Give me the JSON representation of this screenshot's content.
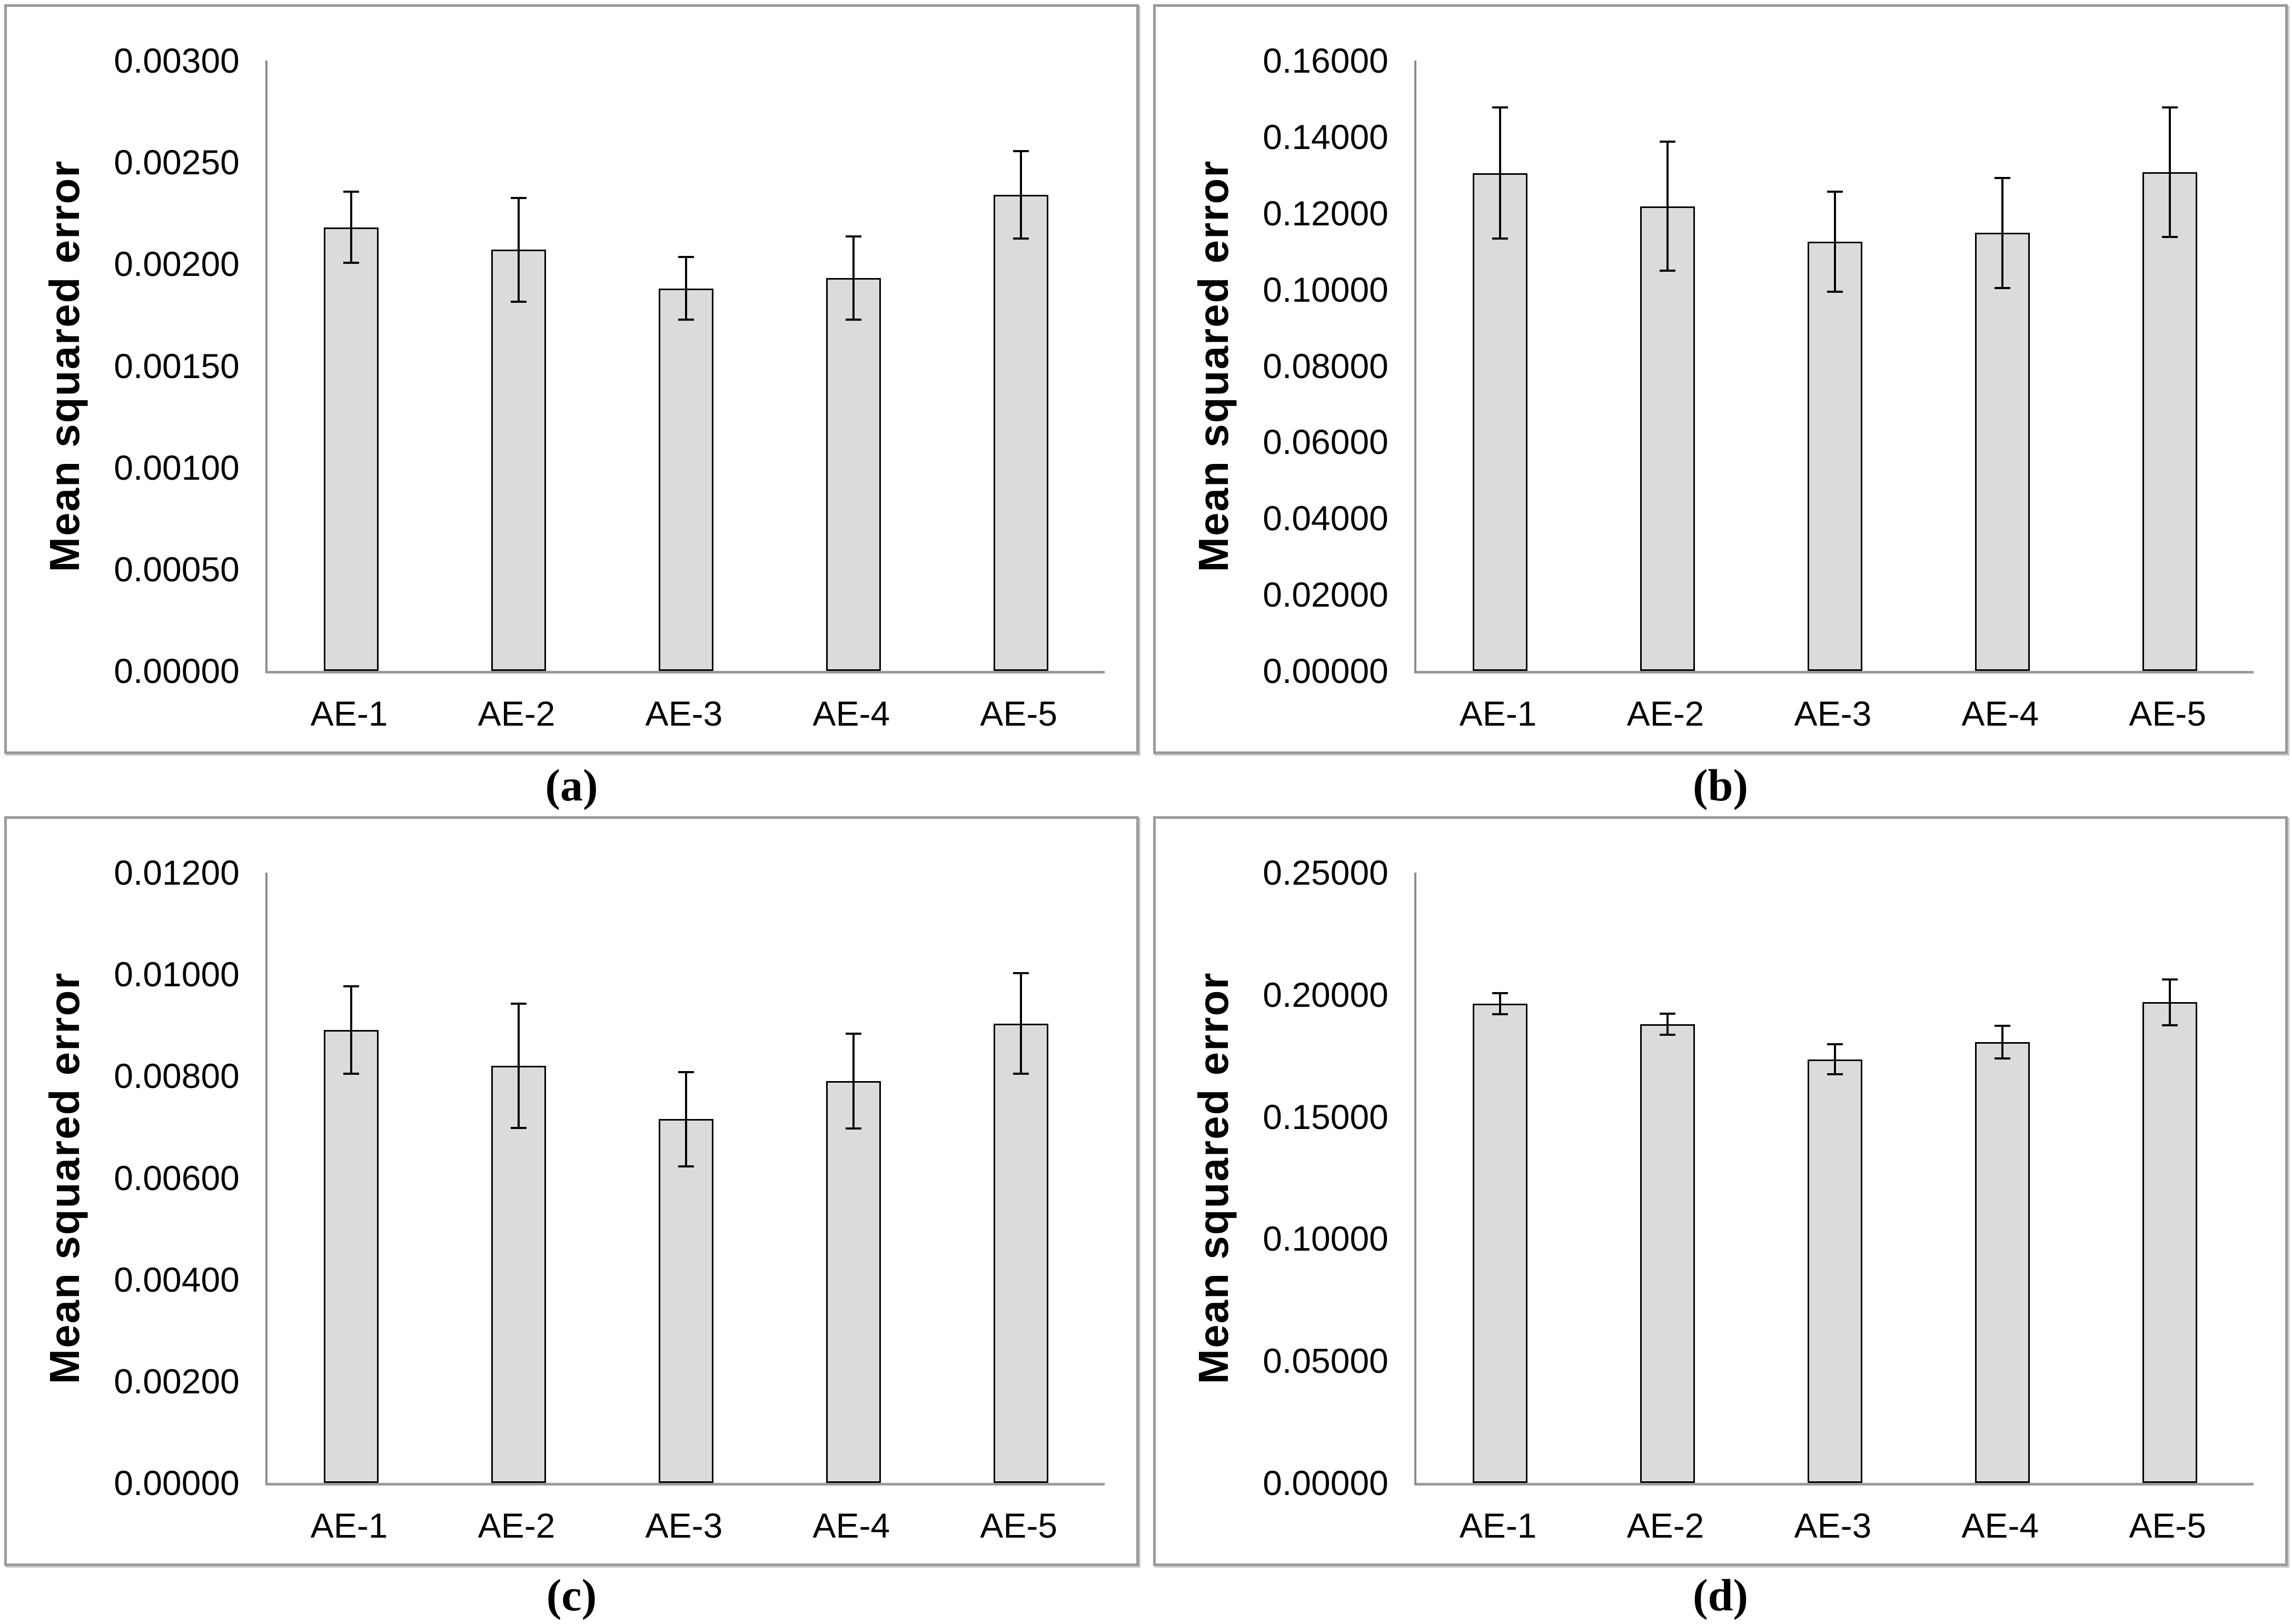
{
  "figure": {
    "background": "#ffffff",
    "panel_border_color": "#9a9a9a",
    "axis_color": "#8c8c8c",
    "bar_fill": "#dbdbdb",
    "bar_border": "#000000",
    "error_color": "#000000",
    "text_color": "#000000"
  },
  "chart_data": [
    {
      "type": "bar",
      "caption": "(a)",
      "ylabel": "Mean squared error",
      "xlabel": "",
      "categories": [
        "AE-1",
        "AE-2",
        "AE-3",
        "AE-4",
        "AE-5"
      ],
      "values": [
        0.00218,
        0.00207,
        0.00188,
        0.00193,
        0.00234
      ],
      "errors": [
        0.00018,
        0.00026,
        0.00016,
        0.00021,
        0.00022
      ],
      "ylim": [
        0,
        0.003
      ],
      "yticks": [
        "0.00300",
        "0.00250",
        "0.00200",
        "0.00150",
        "0.00100",
        "0.00050",
        "0.00000"
      ],
      "grid": false,
      "legend": null
    },
    {
      "type": "bar",
      "caption": "(b)",
      "ylabel": "Mean squared error",
      "xlabel": "",
      "categories": [
        "AE-1",
        "AE-2",
        "AE-3",
        "AE-4",
        "AE-5"
      ],
      "values": [
        0.1305,
        0.1218,
        0.1125,
        0.1148,
        0.1307
      ],
      "errors": [
        0.0174,
        0.0172,
        0.0134,
        0.0147,
        0.0173
      ],
      "ylim": [
        0,
        0.16
      ],
      "yticks": [
        "0.16000",
        "0.14000",
        "0.12000",
        "0.10000",
        "0.08000",
        "0.06000",
        "0.04000",
        "0.02000",
        "0.00000"
      ],
      "grid": false,
      "legend": null
    },
    {
      "type": "bar",
      "caption": "(c)",
      "ylabel": "Mean squared error",
      "xlabel": "",
      "categories": [
        "AE-1",
        "AE-2",
        "AE-3",
        "AE-4",
        "AE-5"
      ],
      "values": [
        0.0089,
        0.0082,
        0.00715,
        0.0079,
        0.00903
      ],
      "errors": [
        0.00088,
        0.00124,
        0.00095,
        0.00095,
        0.00101
      ],
      "ylim": [
        0,
        0.012
      ],
      "yticks": [
        "0.01200",
        "0.01000",
        "0.00800",
        "0.00600",
        "0.00400",
        "0.00200",
        "0.00000"
      ],
      "grid": false,
      "legend": null
    },
    {
      "type": "bar",
      "caption": "(d)",
      "ylabel": "Mean squared error",
      "xlabel": "",
      "categories": [
        "AE-1",
        "AE-2",
        "AE-3",
        "AE-4",
        "AE-5"
      ],
      "values": [
        0.1963,
        0.1878,
        0.1735,
        0.1806,
        0.1969
      ],
      "errors": [
        0.0048,
        0.0047,
        0.0065,
        0.0071,
        0.0098
      ],
      "ylim": [
        0,
        0.25
      ],
      "yticks": [
        "0.25000",
        "0.20000",
        "0.15000",
        "0.10000",
        "0.05000",
        "0.00000"
      ],
      "grid": false,
      "legend": null
    }
  ]
}
